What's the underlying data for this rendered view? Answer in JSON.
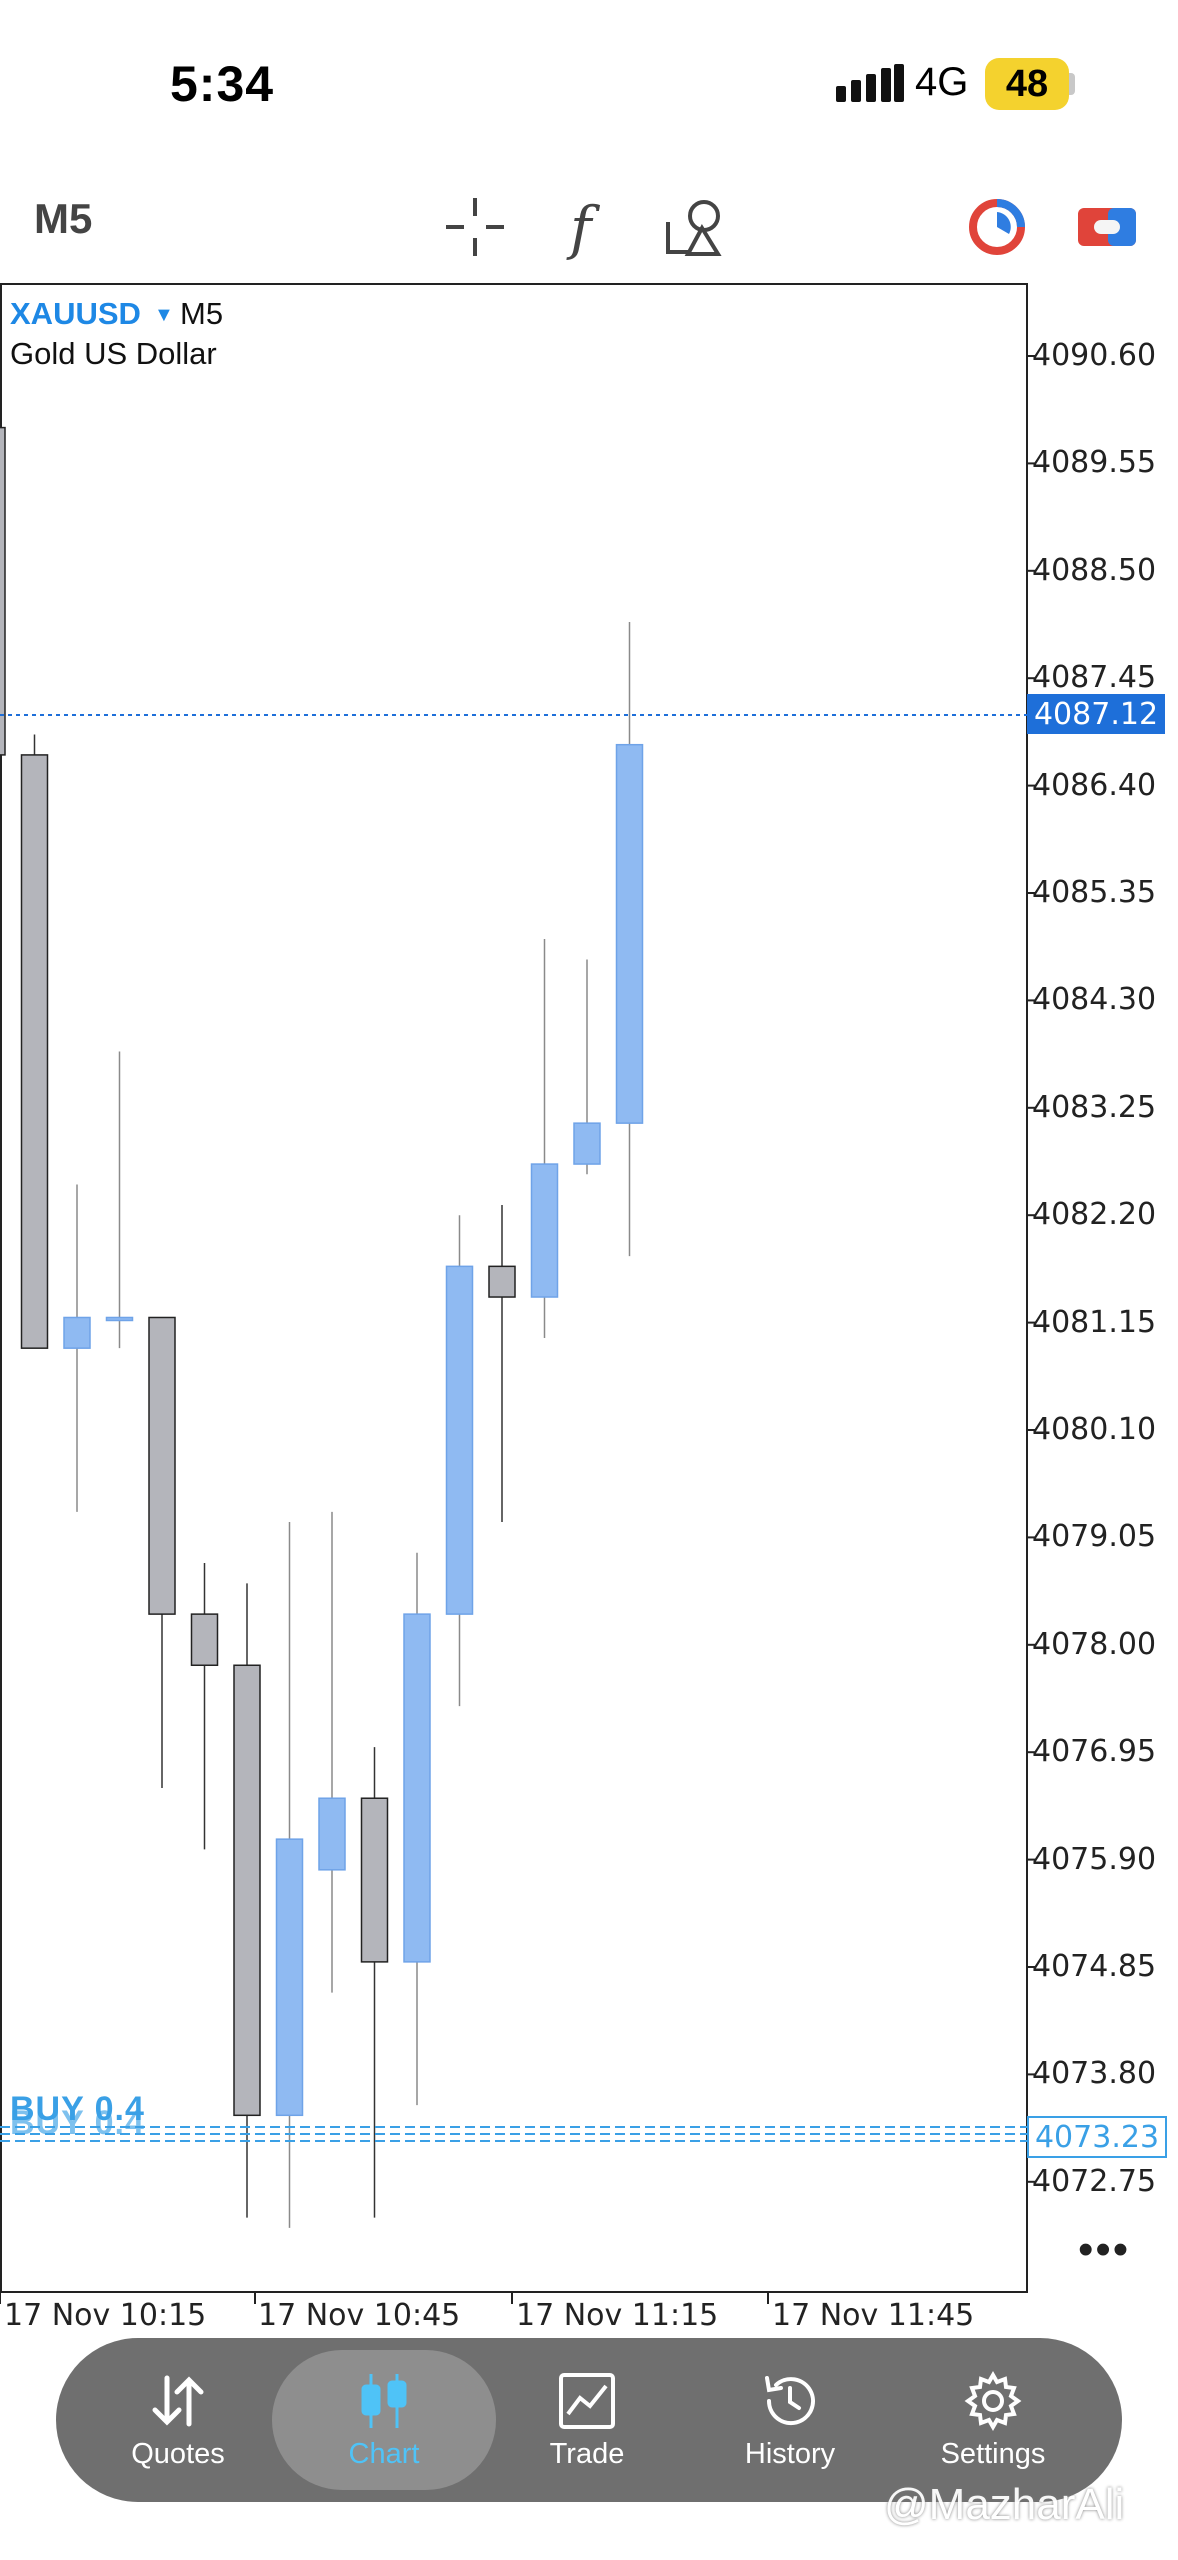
{
  "status_bar": {
    "time": "5:34",
    "network": "4G",
    "battery": "48"
  },
  "toolbar": {
    "timeframe": "M5",
    "tools": [
      "crosshair-icon",
      "function-icon",
      "objects-icon"
    ],
    "right_icons": [
      "one-click-trading-icon",
      "trade-panel-icon"
    ]
  },
  "chart": {
    "symbol": "XAUUSD",
    "timeframe": "M5",
    "description": "Gold US Dollar",
    "bid_price": "4087.12",
    "order_price": "4073.23",
    "order_label": "BUY 0.4",
    "more": "•••",
    "colors": {
      "bull": "#8fbaf2",
      "bear": "#b4b5bb",
      "bid_line": "#1e6fd9",
      "order_line": "#3aa0e6"
    }
  },
  "chart_data": {
    "type": "candlestick",
    "price_axis": [
      "4090.60",
      "4089.55",
      "4088.50",
      "4087.45",
      "4086.40",
      "4085.35",
      "4084.30",
      "4083.25",
      "4082.20",
      "4081.15",
      "4080.10",
      "4079.05",
      "4078.00",
      "4076.95",
      "4075.90",
      "4074.85",
      "4073.80",
      "4072.75"
    ],
    "time_axis": [
      "17 Nov 10:15",
      "17 Nov 10:45",
      "17 Nov 11:15",
      "17 Nov 11:45"
    ],
    "ylim": [
      4072.2,
      4091.6
    ],
    "candles": [
      {
        "o": 4089.9,
        "h": 4089.9,
        "l": 4086.7,
        "c": 4086.7
      },
      {
        "o": 4086.7,
        "h": 4086.9,
        "l": 4080.9,
        "c": 4080.9
      },
      {
        "o": 4080.9,
        "h": 4082.5,
        "l": 4079.3,
        "c": 4081.2
      },
      {
        "o": 4081.2,
        "h": 4083.8,
        "l": 4080.9,
        "c": 4081.2
      },
      {
        "o": 4081.2,
        "h": 4081.2,
        "l": 4076.6,
        "c": 4078.3
      },
      {
        "o": 4078.3,
        "h": 4078.8,
        "l": 4076.0,
        "c": 4077.8
      },
      {
        "o": 4077.8,
        "h": 4078.6,
        "l": 4072.4,
        "c": 4073.4
      },
      {
        "o": 4073.4,
        "h": 4079.2,
        "l": 4072.3,
        "c": 4076.1
      },
      {
        "o": 4075.8,
        "h": 4079.3,
        "l": 4074.6,
        "c": 4076.5
      },
      {
        "o": 4076.5,
        "h": 4077.0,
        "l": 4072.4,
        "c": 4074.9
      },
      {
        "o": 4074.9,
        "h": 4078.9,
        "l": 4073.5,
        "c": 4078.3
      },
      {
        "o": 4078.3,
        "h": 4082.2,
        "l": 4077.4,
        "c": 4081.7
      },
      {
        "o": 4081.7,
        "h": 4082.3,
        "l": 4079.2,
        "c": 4081.4
      },
      {
        "o": 4081.4,
        "h": 4084.9,
        "l": 4081.0,
        "c": 4082.7
      },
      {
        "o": 4082.7,
        "h": 4084.7,
        "l": 4082.6,
        "c": 4083.1
      },
      {
        "o": 4083.1,
        "h": 4088.0,
        "l": 4081.8,
        "c": 4086.8
      }
    ]
  },
  "nav": {
    "items": [
      {
        "label": "Quotes",
        "icon": "quotes-icon"
      },
      {
        "label": "Chart",
        "icon": "chart-icon"
      },
      {
        "label": "Trade",
        "icon": "trade-icon"
      },
      {
        "label": "History",
        "icon": "history-icon"
      },
      {
        "label": "Settings",
        "icon": "settings-icon"
      }
    ],
    "selected": "Chart"
  },
  "watermark": "@MazharAli"
}
